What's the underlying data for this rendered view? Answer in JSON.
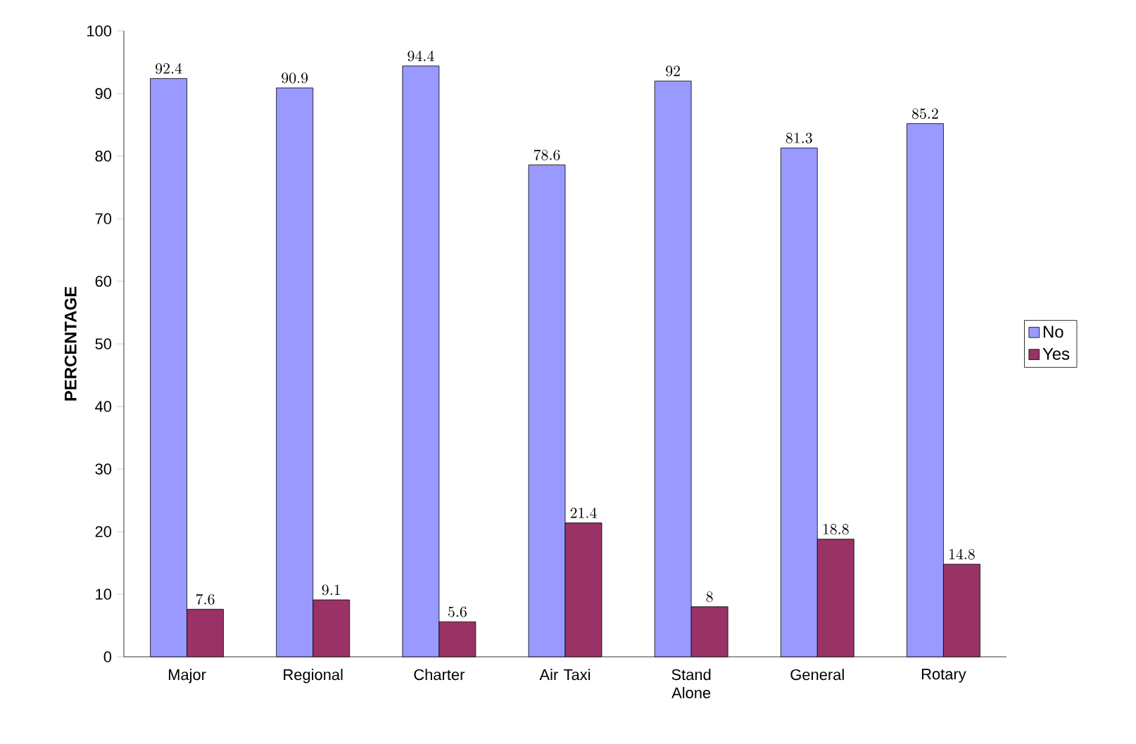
{
  "chart_data": {
    "type": "bar",
    "ylabel": "PERCENTAGE",
    "categories": [
      "Major",
      "Regional",
      "Charter",
      "Air Taxi",
      "Stand Alone",
      "General",
      "Rotary"
    ],
    "series": [
      {
        "name": "No",
        "color": "#9999ff",
        "values": [
          92.4,
          90.9,
          94.4,
          78.6,
          92,
          81.3,
          85.2
        ]
      },
      {
        "name": "Yes",
        "color": "#993366",
        "values": [
          7.6,
          9.1,
          5.6,
          21.4,
          8,
          18.8,
          14.8
        ]
      }
    ],
    "ylim": [
      0,
      100
    ],
    "yticks": [
      0,
      10,
      20,
      30,
      40,
      50,
      60,
      70,
      80,
      90,
      100
    ],
    "data_labels": true,
    "legend": "right",
    "grid": false
  }
}
